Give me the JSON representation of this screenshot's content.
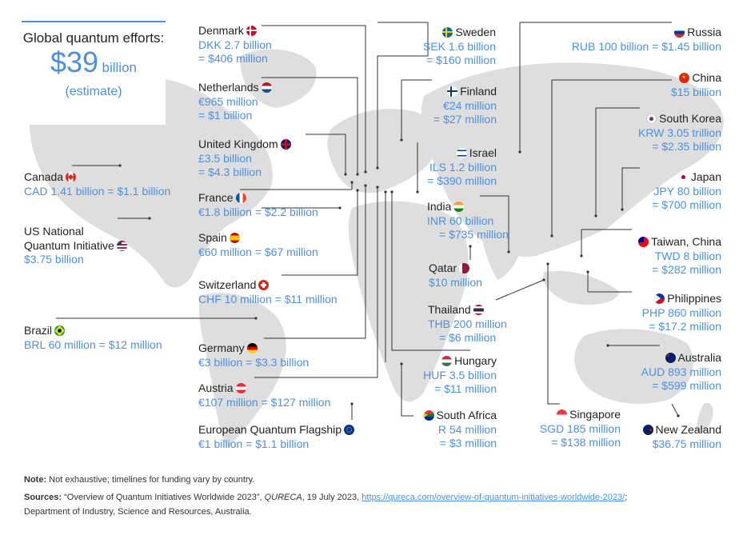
{
  "summary": {
    "title": "Global quantum efforts:",
    "value": "$39",
    "unit": "billion",
    "estimate": "(estimate)"
  },
  "countries": {
    "denmark": {
      "name": "Denmark",
      "line1": "DKK 2.7 billion",
      "line2": "= $406 million"
    },
    "netherlands": {
      "name": "Netherlands",
      "line1": "€965 million",
      "line2": "= $1 billion"
    },
    "uk": {
      "name": "United Kingdom",
      "line1": "£3.5 billion",
      "line2": "= $4.3 billion"
    },
    "france": {
      "name": "France",
      "line1": "€1.8 billion = $2.2 billion"
    },
    "spain": {
      "name": "Spain",
      "line1": "€60 million = $67 million"
    },
    "switzerland": {
      "name": "Switzerland",
      "line1": "CHF 10 million = $11 million"
    },
    "germany": {
      "name": "Germany",
      "line1": "€3 billion = $3.3 billion"
    },
    "austria": {
      "name": "Austria",
      "line1": "€107 million = $127 million"
    },
    "eu": {
      "name": "European Quantum Flagship",
      "line1": "€1 billion = $1.1 billion"
    },
    "canada": {
      "name": "Canada",
      "line1": "CAD 1.41 billion = $1.1 billion"
    },
    "us": {
      "name1": "US National",
      "name2": "Quantum Initiative",
      "line1": "$3.75 billion"
    },
    "brazil": {
      "name": "Brazil",
      "line1": "BRL 60 million = $12 million"
    },
    "sweden": {
      "name": "Sweden",
      "line1": "SEK 1.6 billion",
      "line2": "= $160 million"
    },
    "finland": {
      "name": "Finland",
      "line1": "€24 million",
      "line2": "= $27 million"
    },
    "israel": {
      "name": "Israel",
      "line1": "ILS 1.2 billion",
      "line2": "= $390 million"
    },
    "india": {
      "name": "India",
      "line1": "INR 60 billion",
      "line2": "= $735 million"
    },
    "qatar": {
      "name": "Qatar",
      "line1": "$10 million"
    },
    "thailand": {
      "name": "Thailand",
      "line1": "THB 200 million",
      "line2": "= $6 million"
    },
    "hungary": {
      "name": "Hungary",
      "line1": "HUF 3.5 billion",
      "line2": "= $11 million"
    },
    "southafrica": {
      "name": "South Africa",
      "line1": "R 54 million",
      "line2": "= $3 million"
    },
    "russia": {
      "name": "Russia",
      "line1": "RUB 100 billion = $1.45 billion"
    },
    "china": {
      "name": "China",
      "line1": "$15 billion"
    },
    "southkorea": {
      "name": "South Korea",
      "line1": "KRW 3.05 trillion",
      "line2": "= $2.35 billion"
    },
    "japan": {
      "name": "Japan",
      "line1": "JPY 80 billion",
      "line2": "= $700 million"
    },
    "taiwan": {
      "name": "Taiwan, China",
      "line1": "TWD 8 billion",
      "line2": "= $282 million"
    },
    "philippines": {
      "name": "Philippines",
      "line1": "PHP 860 million",
      "line2": "= $17.2 million"
    },
    "australia": {
      "name": "Australia",
      "line1": "AUD 893 million",
      "line2": "= $599 million"
    },
    "singapore": {
      "name": "Singapore",
      "line1": "SGD 185 million",
      "line2": "= $138 million"
    },
    "newzealand": {
      "name": "New Zealand",
      "line1": "$36.75 million"
    }
  },
  "footer": {
    "note_label": "Note:",
    "note_text": " Not exhaustive; timelines for funding vary by country.",
    "sources_label": "Sources:",
    "sources_text1": " “Overview of Quantum Initiatives Worldwide 2023”, ",
    "sources_pub": "QURECA",
    "sources_text2": ", 19 July 2023, ",
    "sources_link": "https://qureca.com/overview-of-quantum-initiatives-worldwide-2023/",
    "sources_text3": ";",
    "sources_line2": "Department of Industry, Science and Resources, Australia."
  },
  "colors": {
    "accent": "#4a90e2",
    "map": "#dcdcdc",
    "line": "#333333"
  }
}
